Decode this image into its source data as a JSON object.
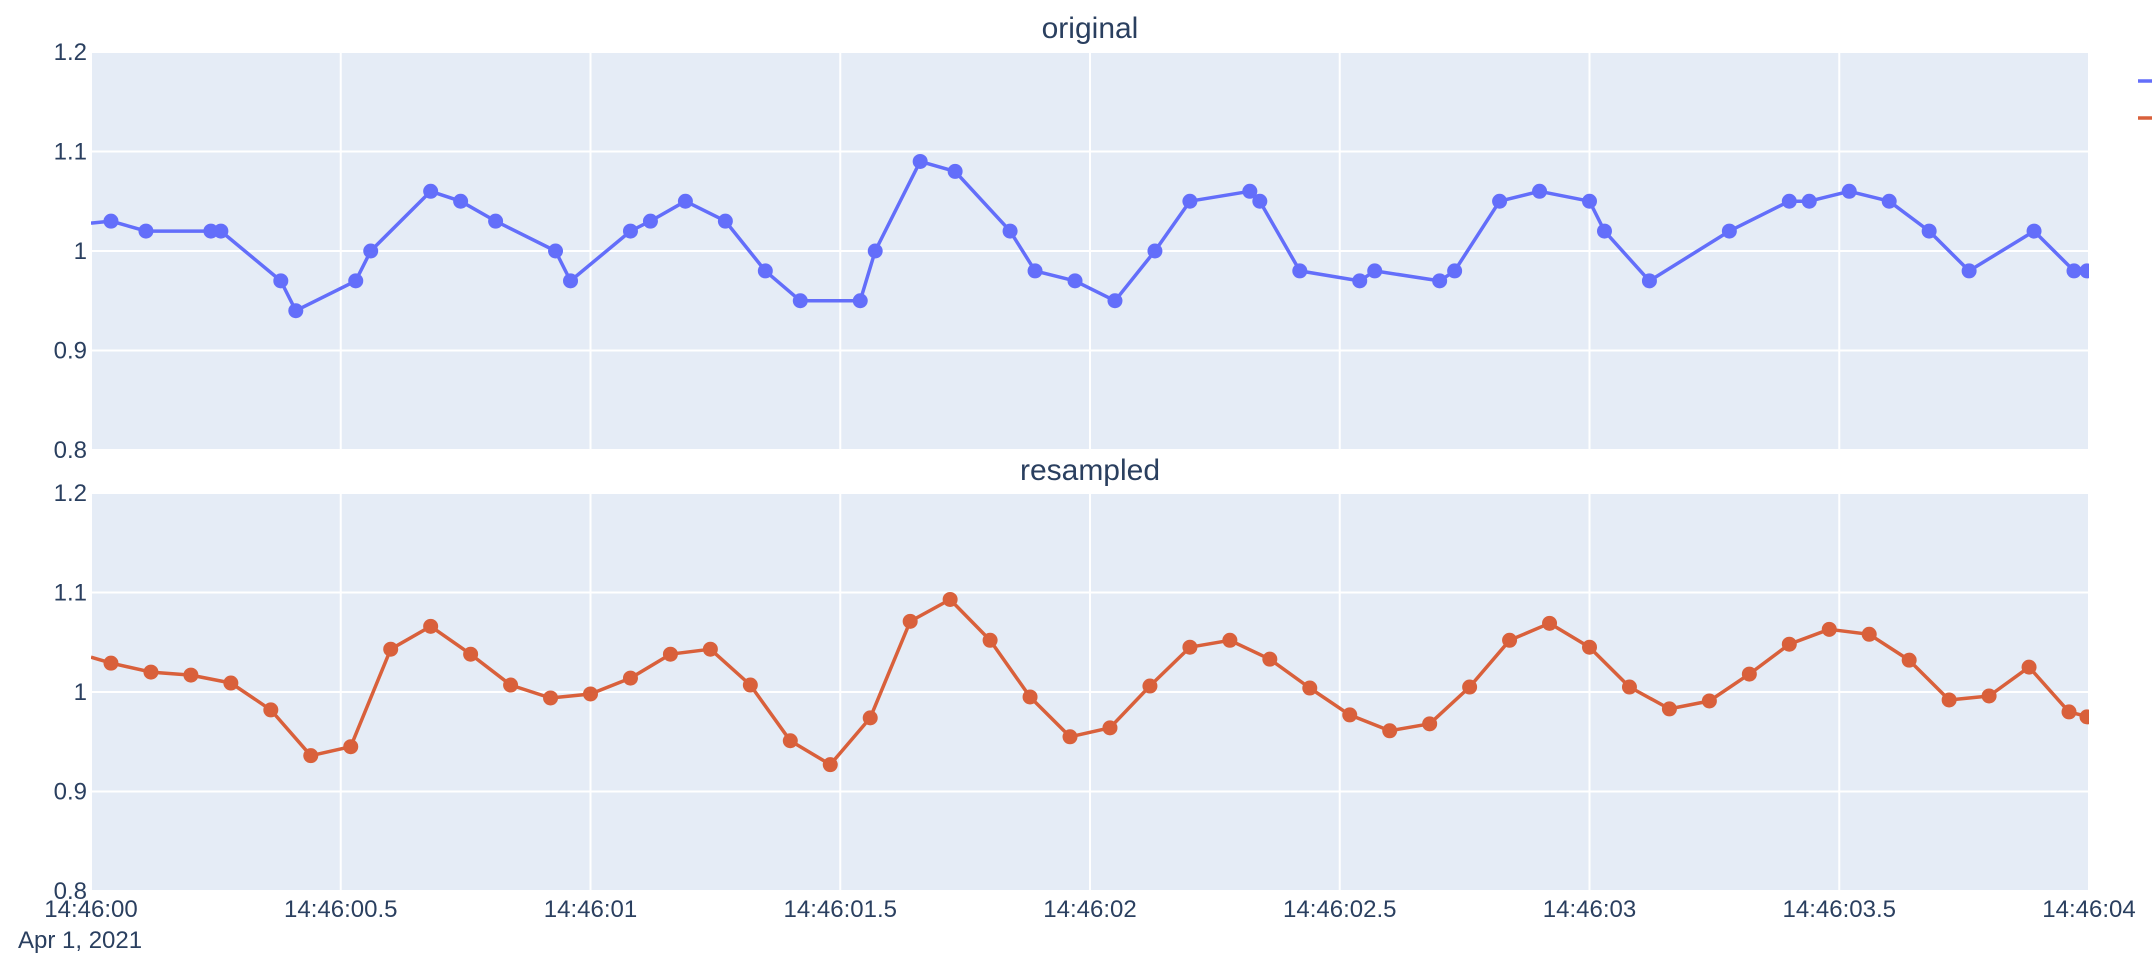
{
  "chart_data": [
    {
      "type": "line",
      "title": "original",
      "xlabel": "",
      "ylabel": "",
      "x_range": [
        "2021-04-01 14:46:00",
        "2021-04-01 14:46:04"
      ],
      "ylim": [
        0.8,
        1.2
      ],
      "grid": true,
      "legend": "top-right (outside plot, labels cut off)",
      "series": [
        {
          "color": "#636efa",
          "mode": "lines+markers",
          "x_seconds": [
            0.04,
            0.11,
            0.24,
            0.26,
            0.38,
            0.41,
            0.53,
            0.56,
            0.68,
            0.74,
            0.81,
            0.93,
            0.96,
            1.08,
            1.12,
            1.19,
            1.27,
            1.35,
            1.42,
            1.54,
            1.57,
            1.66,
            1.73,
            1.84,
            1.89,
            1.97,
            2.05,
            2.13,
            2.2,
            2.32,
            2.34,
            2.42,
            2.54,
            2.57,
            2.7,
            2.73,
            2.82,
            2.9,
            3.0,
            3.03,
            3.12,
            3.28,
            3.4,
            3.44,
            3.52,
            3.6,
            3.68,
            3.76,
            3.89,
            3.97
          ],
          "y": [
            1.03,
            1.02,
            1.02,
            1.02,
            0.97,
            0.94,
            0.97,
            1.0,
            1.06,
            1.05,
            1.03,
            1.0,
            0.97,
            1.02,
            1.03,
            1.05,
            1.03,
            0.98,
            0.95,
            0.95,
            1.0,
            1.09,
            1.08,
            1.02,
            0.98,
            0.97,
            0.95,
            1.0,
            1.05,
            1.06,
            1.05,
            0.98,
            0.97,
            0.98,
            0.97,
            0.98,
            1.05,
            1.06,
            1.05,
            1.02,
            0.97,
            1.02,
            1.05,
            1.05,
            1.06,
            1.05,
            1.02,
            0.98,
            1.02,
            0.98
          ],
          "y_at_left_edge": 1.028,
          "y_at_right_edge": 0.98
        }
      ]
    },
    {
      "type": "line",
      "title": "resampled",
      "xlabel": "",
      "ylabel": "",
      "x_range": [
        "2021-04-01 14:46:00",
        "2021-04-01 14:46:04"
      ],
      "ylim": [
        0.8,
        1.2
      ],
      "grid": true,
      "series": [
        {
          "color": "#d9603b",
          "mode": "lines+markers",
          "x_seconds": [
            0.04,
            0.12,
            0.2,
            0.28,
            0.36,
            0.44,
            0.52,
            0.6,
            0.68,
            0.76,
            0.84,
            0.92,
            1.0,
            1.08,
            1.16,
            1.24,
            1.32,
            1.4,
            1.48,
            1.56,
            1.64,
            1.72,
            1.8,
            1.88,
            1.96,
            2.04,
            2.12,
            2.2,
            2.28,
            2.36,
            2.44,
            2.52,
            2.6,
            2.68,
            2.76,
            2.84,
            2.92,
            3.0,
            3.08,
            3.16,
            3.24,
            3.32,
            3.4,
            3.48,
            3.56,
            3.64,
            3.72,
            3.8,
            3.88,
            3.96
          ],
          "y": [
            1.029,
            1.02,
            1.017,
            1.009,
            0.982,
            0.936,
            0.945,
            1.043,
            1.066,
            1.038,
            1.007,
            0.994,
            0.998,
            1.014,
            1.038,
            1.043,
            1.007,
            0.951,
            0.927,
            0.974,
            1.071,
            1.093,
            1.052,
            0.995,
            0.955,
            0.964,
            1.006,
            1.045,
            1.052,
            1.033,
            1.004,
            0.977,
            0.961,
            0.968,
            1.005,
            1.052,
            1.069,
            1.045,
            1.005,
            0.983,
            0.991,
            1.018,
            1.048,
            1.063,
            1.058,
            1.032,
            0.992,
            0.996,
            1.025,
            0.98
          ],
          "y_at_left_edge": 1.035,
          "y_at_right_edge": 0.975
        }
      ]
    }
  ],
  "axes": {
    "y_ticks": [
      "0.8",
      "0.9",
      "1",
      "1.1",
      "1.2"
    ],
    "y_tick_values": [
      0.8,
      0.9,
      1.0,
      1.1,
      1.2
    ],
    "x_ticks": [
      "14:46:00",
      "14:46:00.5",
      "14:46:01",
      "14:46:01.5",
      "14:46:02",
      "14:46:02.5",
      "14:46:03",
      "14:46:03.5",
      "14:46:04"
    ],
    "x_tick_values_seconds": [
      0,
      0.5,
      1.0,
      1.5,
      2.0,
      2.5,
      3.0,
      3.5,
      4.0
    ],
    "x_date_label": "Apr 1, 2021"
  },
  "style": {
    "plot_bg": "#e5ecf6",
    "grid_color": "#ffffff",
    "text_color": "#2a3f5f",
    "series_colors": [
      "#636efa",
      "#d9603b"
    ]
  }
}
